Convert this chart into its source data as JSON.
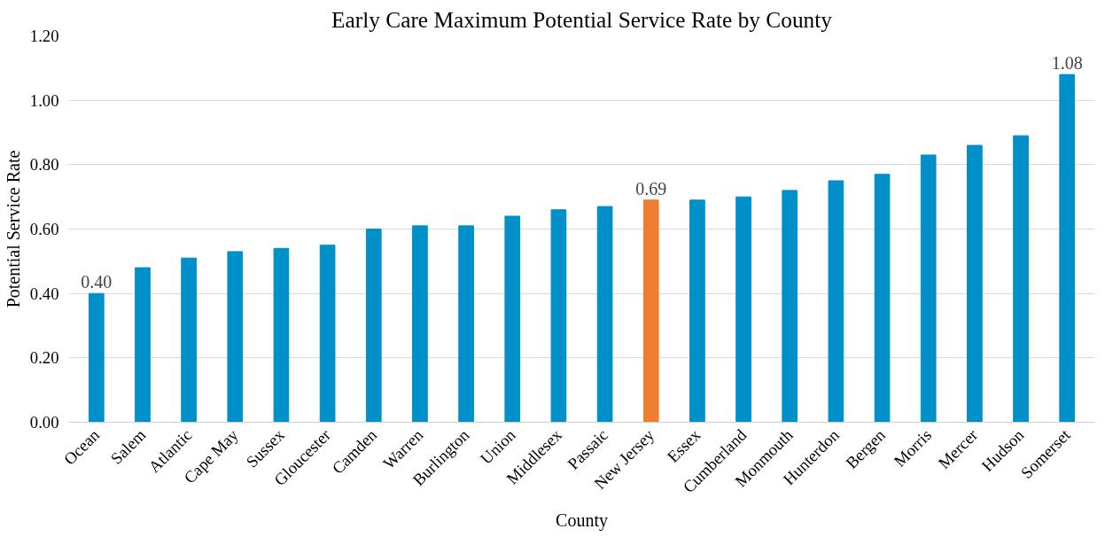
{
  "chart_data": {
    "type": "bar",
    "title": "Early Care Maximum Potential Service Rate by County",
    "xlabel": "County",
    "ylabel": "Potential Service Rate",
    "categories": [
      "Ocean",
      "Salem",
      "Atlantic",
      "Cape May",
      "Sussex",
      "Gloucester",
      "Camden",
      "Warren",
      "Burlington",
      "Union",
      "Middlesex",
      "Passaic",
      "New Jersey",
      "Essex",
      "Cumberland",
      "Monmouth",
      "Hunterdon",
      "Bergen",
      "Morris",
      "Mercer",
      "Hudson",
      "Somerset"
    ],
    "values": [
      0.4,
      0.48,
      0.51,
      0.53,
      0.54,
      0.55,
      0.6,
      0.61,
      0.61,
      0.64,
      0.66,
      0.67,
      0.69,
      0.69,
      0.7,
      0.72,
      0.75,
      0.77,
      0.83,
      0.86,
      0.89,
      1.08
    ],
    "colors": [
      "#0090c9",
      "#0090c9",
      "#0090c9",
      "#0090c9",
      "#0090c9",
      "#0090c9",
      "#0090c9",
      "#0090c9",
      "#0090c9",
      "#0090c9",
      "#0090c9",
      "#0090c9",
      "#ec7d31",
      "#0090c9",
      "#0090c9",
      "#0090c9",
      "#0090c9",
      "#0090c9",
      "#0090c9",
      "#0090c9",
      "#0090c9",
      "#0090c9"
    ],
    "value_labels": [
      "0.40",
      null,
      null,
      null,
      null,
      null,
      null,
      null,
      null,
      null,
      null,
      null,
      "0.69",
      null,
      null,
      null,
      null,
      null,
      null,
      null,
      null,
      "1.08"
    ],
    "ylim": [
      0,
      1.2
    ],
    "yticks": [
      {
        "value": 0,
        "label": "0.00"
      },
      {
        "value": 0.2,
        "label": "0.20"
      },
      {
        "value": 0.4,
        "label": "0.40"
      },
      {
        "value": 0.6,
        "label": "0.60"
      },
      {
        "value": 0.8,
        "label": "0.80"
      },
      {
        "value": 1.0,
        "label": "1.00"
      },
      {
        "value": 1.2,
        "label": "1.20"
      }
    ],
    "grid": "y"
  }
}
